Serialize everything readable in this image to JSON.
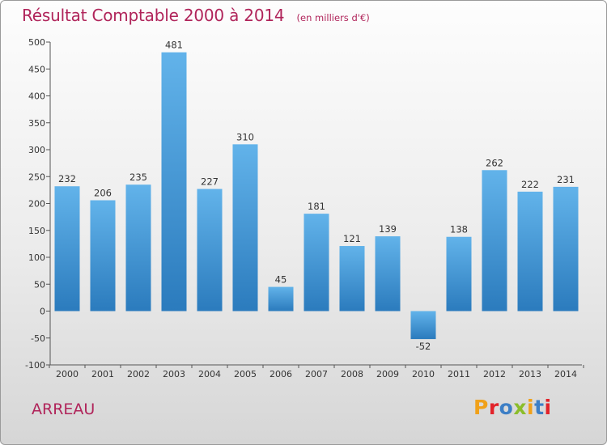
{
  "chart_data": {
    "type": "bar",
    "title": "Résultat Comptable 2000 à 2014",
    "subtitle": "(en milliers d'€)",
    "xlabel": "",
    "ylabel": "",
    "categories": [
      "2000",
      "2001",
      "2002",
      "2003",
      "2004",
      "2005",
      "2006",
      "2007",
      "2008",
      "2009",
      "2010",
      "2011",
      "2012",
      "2013",
      "2014"
    ],
    "values": [
      232,
      206,
      235,
      481,
      227,
      310,
      45,
      181,
      121,
      139,
      -52,
      138,
      262,
      222,
      231
    ],
    "data_labels": [
      "232",
      "206",
      "235",
      "481",
      "227",
      "310",
      "45",
      "181",
      "121",
      "139",
      "-52",
      "138",
      "262",
      "222",
      "231"
    ],
    "ylim": [
      -100,
      500
    ],
    "yticks": [
      -100,
      -50,
      0,
      50,
      100,
      150,
      200,
      250,
      300,
      350,
      400,
      450,
      500
    ],
    "ytick_labels": [
      "-100",
      "-50",
      "0",
      "50",
      "100",
      "150",
      "200",
      "250",
      "300",
      "350",
      "400",
      "450",
      "500"
    ],
    "grid": false,
    "legend": "none"
  },
  "footer": {
    "place_name": "ARREAU",
    "logo_text": "Proxiti"
  },
  "colors": {
    "title": "#b0245a",
    "bar_top": "#62b3ea",
    "bar_bottom": "#2b7bbd",
    "axis": "#555555",
    "logo_letters": [
      "#f0a11a",
      "#e2232a",
      "#3d7fc6",
      "#8bbd2a",
      "#f0a11a",
      "#3d7fc6",
      "#e2232a"
    ]
  }
}
